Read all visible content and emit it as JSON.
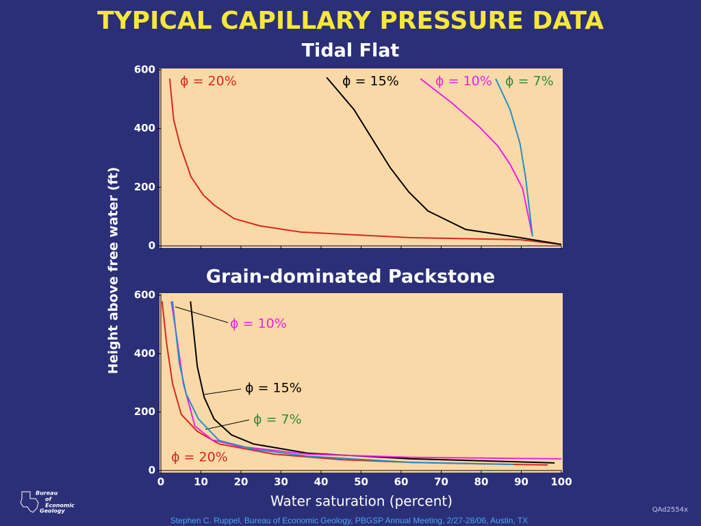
{
  "title": "TYPICAL CAPILLARY PRESSURE DATA",
  "chart_data": [
    {
      "type": "line",
      "title": "Tidal Flat",
      "ylabel": "Height above free water (ft)",
      "xlim": [
        0,
        100
      ],
      "ylim": [
        0,
        600
      ],
      "xticks": [
        0,
        10,
        20,
        30,
        40,
        50,
        60,
        70,
        80,
        90,
        100
      ],
      "yticks": [
        0,
        200,
        400,
        600
      ],
      "show_xtick_labels": false,
      "series": [
        {
          "name": "ϕ = 20%",
          "color": "#d9261c",
          "label_color": "#d9261c",
          "x": [
            2.2,
            3.2,
            4.8,
            7.5,
            10.6,
            13.4,
            18.3,
            24.8,
            35,
            62.4,
            89.7,
            100
          ],
          "values": [
            570,
            430,
            343,
            236,
            173,
            138,
            93,
            68,
            47,
            28,
            21,
            5
          ]
        },
        {
          "name": "ϕ = 15%",
          "color": "#000000",
          "label_color": "#000000",
          "x": [
            41.4,
            48.2,
            53,
            57.3,
            61.9,
            66.7,
            76.1,
            89.7,
            100
          ],
          "values": [
            574,
            465,
            360,
            266,
            184,
            119,
            56,
            28,
            5
          ]
        },
        {
          "name": "ϕ = 10%",
          "color": "#ee1ee8",
          "label_color": "#ee1ee8",
          "x": [
            64.8,
            72.6,
            79.5,
            84.1,
            87.2,
            90.3,
            92.8
          ],
          "values": [
            570,
            488,
            406,
            341,
            278,
            196,
            33
          ]
        },
        {
          "name": "ϕ = 7%",
          "color": "#1f8fc8",
          "label_color": "#2e8b3a",
          "x": [
            83.6,
            87.2,
            89.7,
            91.1,
            92.8
          ],
          "values": [
            570,
            465,
            348,
            231,
            33
          ]
        }
      ]
    },
    {
      "type": "line",
      "title": "Grain-dominated Packstone",
      "xlabel": "Water saturation (percent)",
      "xlim": [
        0,
        100
      ],
      "ylim": [
        0,
        600
      ],
      "xticks": [
        0,
        10,
        20,
        30,
        40,
        50,
        60,
        70,
        80,
        90,
        100
      ],
      "yticks": [
        0,
        200,
        400,
        600
      ],
      "show_xtick_labels": true,
      "series": [
        {
          "name": "ϕ = 20%",
          "color": "#d9261c",
          "label_color": "#d9261c",
          "x": [
            0.3,
            1.4,
            2.9,
            5.1,
            9.1,
            14.5,
            28.2,
            45.3,
            62.4,
            79.5,
            96.6
          ],
          "values": [
            579,
            438,
            298,
            192,
            134,
            91,
            56,
            37,
            28,
            23,
            19
          ]
        },
        {
          "name": "ϕ = 15%",
          "color": "#000000",
          "label_color": "#000000",
          "x": [
            7.4,
            9.1,
            10.8,
            13.3,
            17.6,
            23.1,
            36.8,
            62.4,
            98.3
          ],
          "values": [
            579,
            356,
            251,
            176,
            122,
            91,
            59,
            40,
            26
          ]
        },
        {
          "name": "ϕ = 10%",
          "color": "#ee1ee8",
          "label_color": "#ee1ee8",
          "x": [
            2.6,
            3.9,
            5.6,
            8.5,
            12.8,
            19.7,
            36.8,
            62.4,
            100
          ],
          "values": [
            579,
            462,
            298,
            152,
            105,
            82,
            56,
            45,
            40
          ]
        },
        {
          "name": "ϕ = 7%",
          "color": "#1f8fc8",
          "label_color": "#2e8b3a",
          "x": [
            2.9,
            4.6,
            6.3,
            9.4,
            14.5,
            23.1,
            36.8,
            62.4,
            88
          ],
          "values": [
            579,
            368,
            262,
            176,
            103,
            73,
            49,
            28,
            21
          ]
        }
      ]
    }
  ],
  "logo": [
    "Bureau",
    "of",
    "Economic",
    "Geology"
  ],
  "slide_code": "QAd2554x",
  "footer": "Stephen C. Ruppel, Bureau of Economic Geology, PBGSP Annual Meeting, 2/27-28/06, Austin, TX"
}
